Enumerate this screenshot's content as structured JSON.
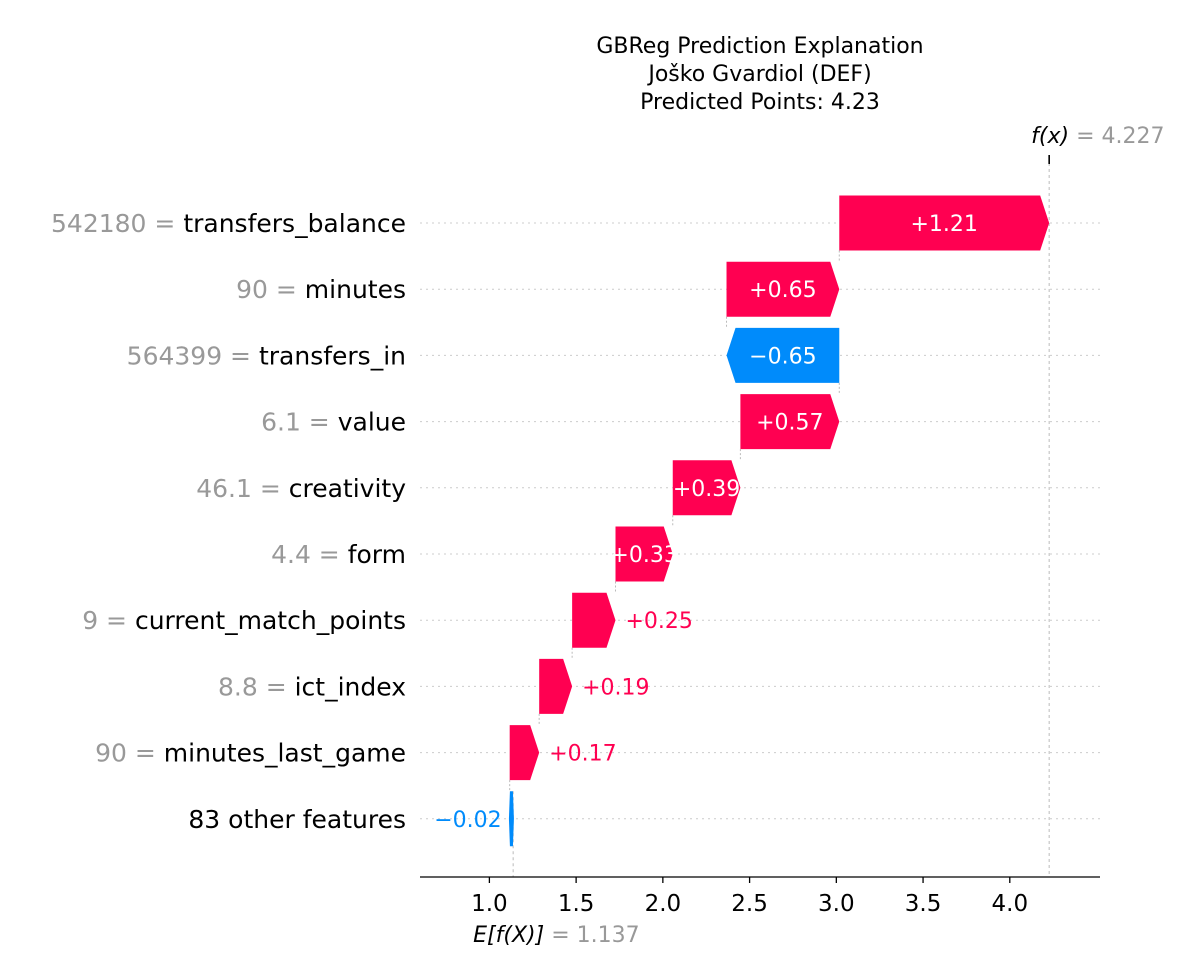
{
  "chart_data": {
    "type": "waterfall",
    "title": {
      "line1": "GBReg Prediction Explanation",
      "line2": "Joško Gvardiol (DEF)",
      "line3": "Predicted Points: 4.23"
    },
    "base_value": 1.137,
    "output_value": 4.227,
    "base_label": {
      "func": "E[f(X)]",
      "eq": "=",
      "value_text": "1.137"
    },
    "output_label": {
      "func": "f(x)",
      "eq": "=",
      "value_text": "4.227"
    },
    "x_ticks": [
      1.0,
      1.5,
      2.0,
      2.5,
      3.0,
      3.5,
      4.0
    ],
    "x_tick_labels": [
      "1.0",
      "1.5",
      "2.0",
      "2.5",
      "3.0",
      "3.5",
      "4.0"
    ],
    "xlim": [
      0.6,
      4.52
    ],
    "features": [
      {
        "value_text": "542180 =",
        "name": "transfers_balance",
        "shap": 1.21,
        "label": "+1.21"
      },
      {
        "value_text": "90 =",
        "name": "minutes",
        "shap": 0.65,
        "label": "+0.65"
      },
      {
        "value_text": "564399 =",
        "name": "transfers_in",
        "shap": -0.65,
        "label": "−0.65"
      },
      {
        "value_text": "6.1 =",
        "name": "value",
        "shap": 0.57,
        "label": "+0.57"
      },
      {
        "value_text": "46.1 =",
        "name": "creativity",
        "shap": 0.39,
        "label": "+0.39"
      },
      {
        "value_text": "4.4 =",
        "name": "form",
        "shap": 0.33,
        "label": "+0.33"
      },
      {
        "value_text": "9 =",
        "name": "current_match_points",
        "shap": 0.25,
        "label": "+0.25"
      },
      {
        "value_text": "8.8 =",
        "name": "ict_index",
        "shap": 0.19,
        "label": "+0.19"
      },
      {
        "value_text": "90 =",
        "name": "minutes_last_game",
        "shap": 0.17,
        "label": "+0.17"
      },
      {
        "value_text": "",
        "name": "83 other features",
        "shap": -0.02,
        "label": "−0.02"
      }
    ],
    "colors": {
      "positive": "#ff0051",
      "negative": "#008bfb",
      "text_gray": "#999999",
      "grid": "#cccccc"
    }
  }
}
